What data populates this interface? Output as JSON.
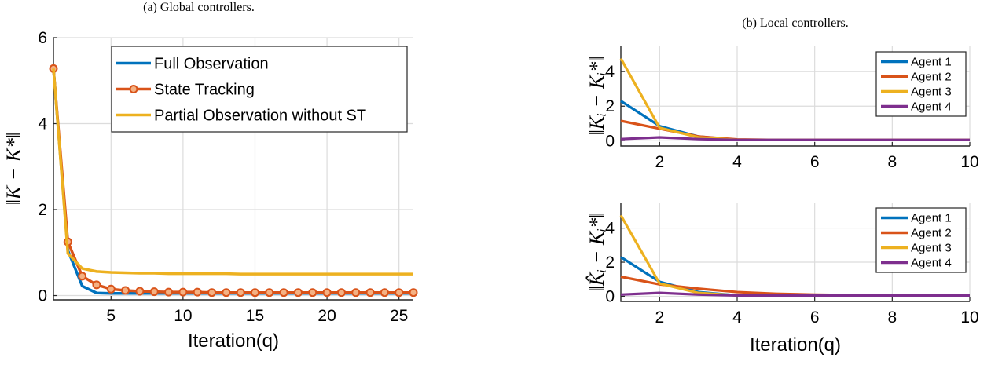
{
  "colors": {
    "blue": "#0072BD",
    "orange": "#D95319",
    "yellow": "#EDB120",
    "purple": "#7E2F8E"
  },
  "chart_data": [
    {
      "type": "line",
      "caption": "(a) Global controllers.",
      "xlabel": "Iteration(q)",
      "ylabel": "‖K − K*‖",
      "xlim": [
        1,
        26
      ],
      "ylim": [
        -0.1,
        6
      ],
      "xticks": [
        5,
        10,
        15,
        20,
        25
      ],
      "yticks": [
        0,
        2,
        4,
        6
      ],
      "grid": true,
      "legend_position": "top-right",
      "x": [
        1,
        2,
        3,
        4,
        5,
        6,
        7,
        8,
        9,
        10,
        11,
        12,
        13,
        14,
        15,
        16,
        17,
        18,
        19,
        20,
        21,
        22,
        23,
        24,
        25,
        26
      ],
      "series": [
        {
          "name": "Full Observation",
          "color": "blue",
          "marker": "none",
          "values": [
            5.28,
            1.05,
            0.22,
            0.06,
            0.05,
            0.05,
            0.05,
            0.05,
            0.05,
            0.05,
            0.05,
            0.05,
            0.05,
            0.05,
            0.05,
            0.05,
            0.05,
            0.05,
            0.05,
            0.05,
            0.05,
            0.05,
            0.05,
            0.05,
            0.05,
            0.05
          ]
        },
        {
          "name": "State Tracking",
          "color": "orange",
          "marker": "circle",
          "values": [
            5.28,
            1.25,
            0.45,
            0.25,
            0.15,
            0.12,
            0.1,
            0.09,
            0.08,
            0.08,
            0.08,
            0.07,
            0.07,
            0.07,
            0.07,
            0.07,
            0.07,
            0.07,
            0.07,
            0.07,
            0.07,
            0.07,
            0.07,
            0.07,
            0.07,
            0.07
          ]
        },
        {
          "name": "Partial Observation without ST",
          "color": "yellow",
          "marker": "none",
          "values": [
            5.28,
            0.98,
            0.63,
            0.56,
            0.54,
            0.53,
            0.52,
            0.52,
            0.51,
            0.51,
            0.51,
            0.51,
            0.51,
            0.5,
            0.5,
            0.5,
            0.5,
            0.5,
            0.5,
            0.5,
            0.5,
            0.5,
            0.5,
            0.5,
            0.5,
            0.5
          ]
        }
      ]
    },
    {
      "type": "line",
      "caption": "(b) Local controllers.",
      "xlabel": "",
      "ylabel": "‖Kᵢ − Kᵢ*‖",
      "xlim": [
        1,
        10
      ],
      "ylim": [
        -0.3,
        5.5
      ],
      "xticks": [
        2,
        4,
        6,
        8,
        10
      ],
      "yticks": [
        0,
        2,
        4
      ],
      "grid": true,
      "legend_position": "top-right",
      "x": [
        1,
        2,
        3,
        4,
        5,
        6,
        7,
        8,
        9,
        10
      ],
      "series": [
        {
          "name": "Agent 1",
          "color": "blue",
          "values": [
            2.3,
            0.85,
            0.25,
            0.05,
            0.05,
            0.05,
            0.05,
            0.05,
            0.05,
            0.05
          ]
        },
        {
          "name": "Agent 2",
          "color": "orange",
          "values": [
            1.15,
            0.7,
            0.25,
            0.08,
            0.05,
            0.05,
            0.05,
            0.05,
            0.05,
            0.05
          ]
        },
        {
          "name": "Agent 3",
          "color": "yellow",
          "values": [
            4.75,
            0.75,
            0.2,
            0.05,
            0.05,
            0.05,
            0.05,
            0.05,
            0.05,
            0.05
          ]
        },
        {
          "name": "Agent 4",
          "color": "purple",
          "values": [
            0.1,
            0.2,
            0.1,
            0.05,
            0.05,
            0.05,
            0.05,
            0.05,
            0.05,
            0.05
          ]
        }
      ]
    },
    {
      "type": "line",
      "caption": "",
      "xlabel": "Iteration(q)",
      "ylabel": "‖K̂ᵢ − Kᵢ*‖",
      "xlim": [
        1,
        10
      ],
      "ylim": [
        -0.3,
        5.5
      ],
      "xticks": [
        2,
        4,
        6,
        8,
        10
      ],
      "yticks": [
        0,
        2,
        4
      ],
      "grid": true,
      "legend_position": "top-right",
      "x": [
        1,
        2,
        3,
        4,
        5,
        6,
        7,
        8,
        9,
        10
      ],
      "series": [
        {
          "name": "Agent 1",
          "color": "blue",
          "values": [
            2.3,
            0.85,
            0.25,
            0.05,
            0.05,
            0.05,
            0.05,
            0.05,
            0.05,
            0.05
          ]
        },
        {
          "name": "Agent 2",
          "color": "orange",
          "values": [
            1.15,
            0.7,
            0.45,
            0.25,
            0.15,
            0.1,
            0.07,
            0.05,
            0.05,
            0.05
          ]
        },
        {
          "name": "Agent 3",
          "color": "yellow",
          "values": [
            4.75,
            0.75,
            0.2,
            0.05,
            0.05,
            0.05,
            0.05,
            0.05,
            0.05,
            0.05
          ]
        },
        {
          "name": "Agent 4",
          "color": "purple",
          "values": [
            0.1,
            0.2,
            0.1,
            0.05,
            0.05,
            0.05,
            0.05,
            0.05,
            0.05,
            0.05
          ]
        }
      ]
    }
  ]
}
